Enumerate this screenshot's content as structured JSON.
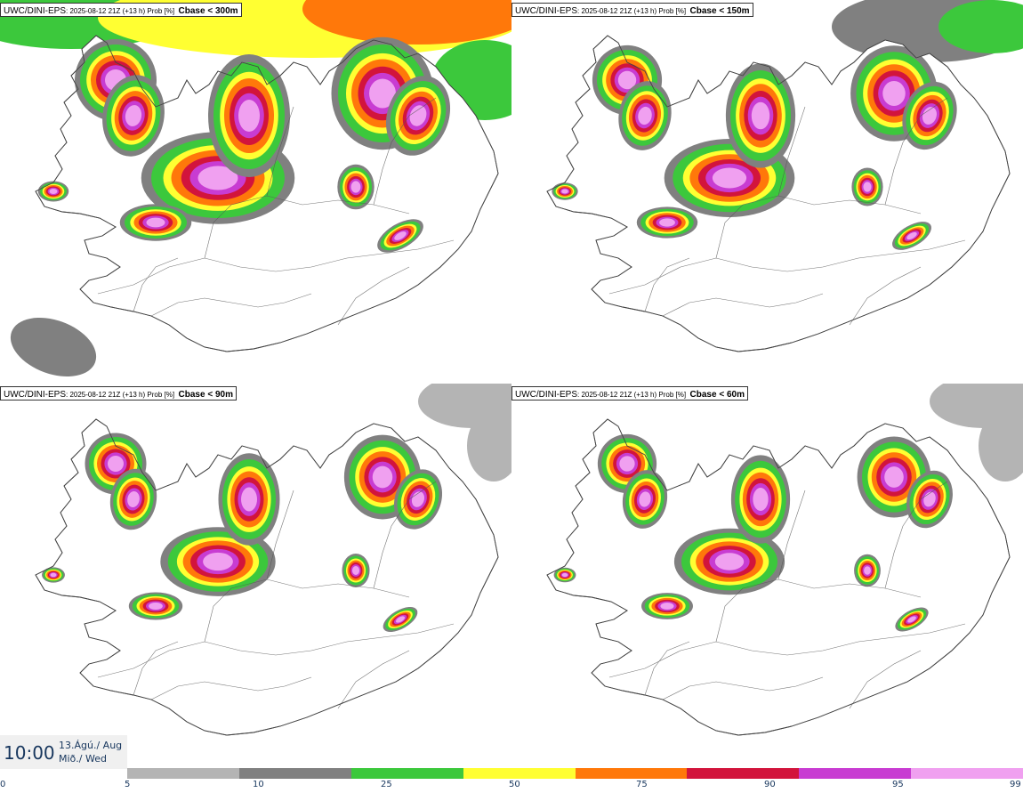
{
  "panels": [
    {
      "source": "UWC/DINI-EPS",
      "meta": ": 2025-08-12 21Z (+13 h) Prob [%]",
      "parameter": "Cbase < 300m"
    },
    {
      "source": "UWC/DINI-EPS",
      "meta": ": 2025-08-12 21Z (+13 h) Prob [%]",
      "parameter": "Cbase < 150m"
    },
    {
      "source": "UWC/DINI-EPS",
      "meta": ": 2025-08-12 21Z (+13 h) Prob [%]",
      "parameter": "Cbase < 90m"
    },
    {
      "source": "UWC/DINI-EPS",
      "meta": ": 2025-08-12 21Z (+13 h) Prob [%]",
      "parameter": "Cbase < 60m"
    }
  ],
  "valid_time": {
    "time": "10:00",
    "date_line1": "13.Ágú./ Aug",
    "date_line2": "Mið./ Wed"
  },
  "legend": {
    "ticks": [
      "0",
      "5",
      "10",
      "25",
      "50",
      "75",
      "90",
      "95",
      "99"
    ],
    "colors": [
      "#b4b4b4",
      "#808080",
      "#3cc83c",
      "#ffff32",
      "#ff780a",
      "#d2143c",
      "#c83cd2",
      "#f0a0f0"
    ]
  },
  "palette": {
    "p5": "#b4b4b4",
    "p10": "#808080",
    "p25": "#3cc83c",
    "p50": "#ffff32",
    "p75": "#ff780a",
    "p90": "#d2143c",
    "p95": "#c83cd2",
    "p99": "#f0a0f0",
    "coast": "#444444",
    "text": "#17365d"
  }
}
